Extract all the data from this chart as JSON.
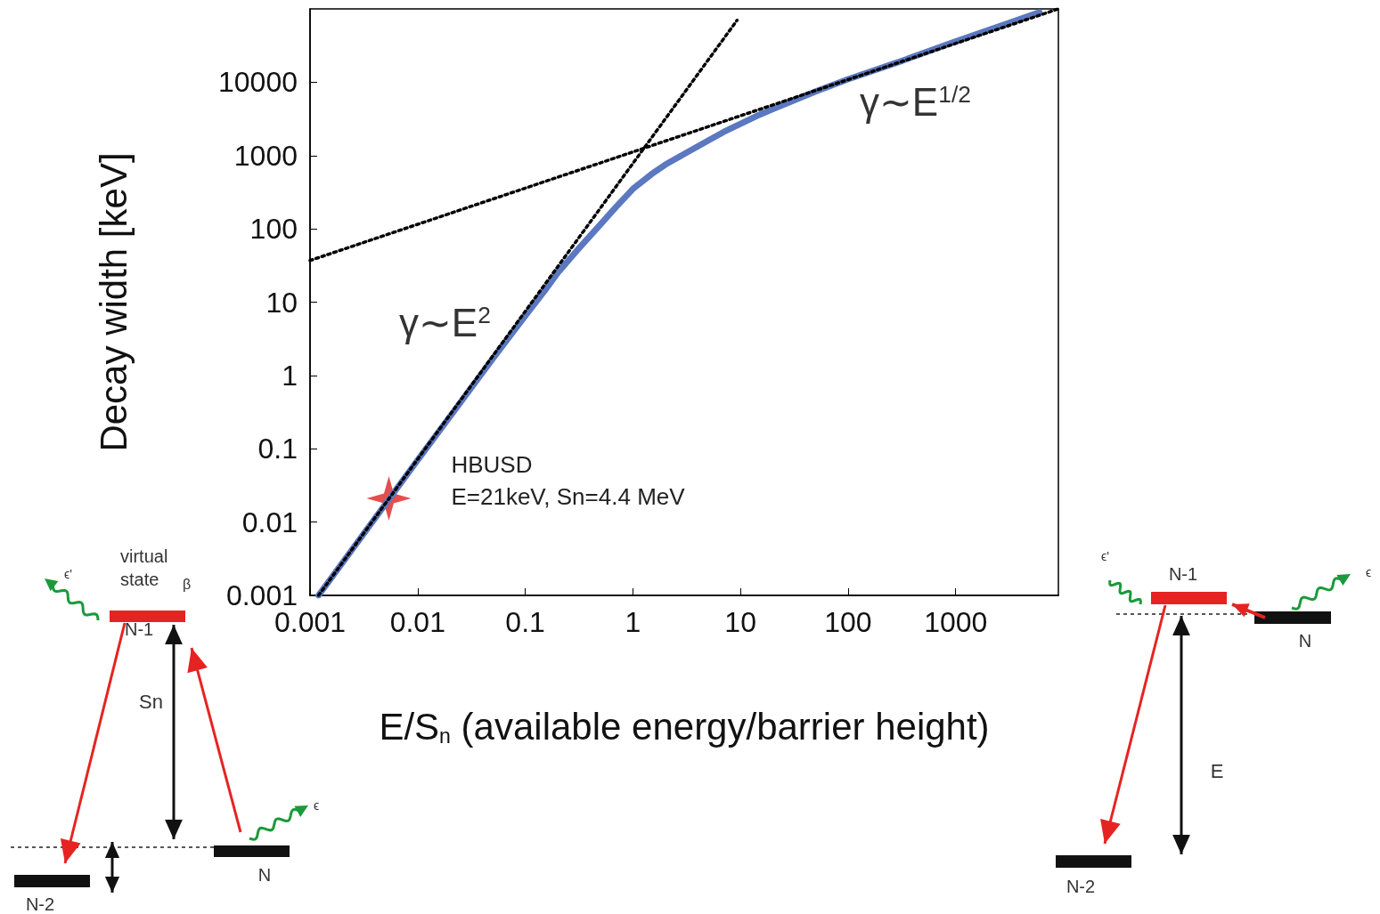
{
  "chart_data": {
    "type": "line",
    "xlabel": "E/S$_{n}$ (available energy/barrier height)",
    "ylabel": "Decay width [keV]",
    "log": "xy",
    "xlim": [
      0.001,
      9000
    ],
    "ylim": [
      0.001,
      100000
    ],
    "xticks": [
      0.001,
      0.01,
      0.1,
      1,
      10,
      100,
      1000
    ],
    "yticks": [
      0.001,
      0.01,
      0.1,
      1,
      10,
      100,
      1000,
      10000
    ],
    "series": [
      {
        "type": "line",
        "color": "#5b78c0",
        "line_style": "solid",
        "marker": "none",
        "x": [
          0.0012,
          0.01,
          0.05,
          0.1,
          0.15,
          0.2,
          0.3,
          0.4,
          0.5,
          0.7,
          1,
          1.5,
          2,
          3,
          5,
          7,
          10,
          15,
          20,
          50,
          100,
          300,
          1000,
          3000,
          6000
        ],
        "values": [
          0.001,
          0.07,
          1.7,
          6.5,
          14,
          25,
          50,
          80,
          115,
          200,
          350,
          560,
          750,
          1050,
          1600,
          2100,
          2700,
          3600,
          4300,
          7500,
          11000,
          19000,
          36000,
          63000,
          90000
        ]
      },
      {
        "type": "line",
        "color": "#000000",
        "line_style": "dotted",
        "marker": "none",
        "x": [
          0.0012,
          9.3
        ],
        "values": [
          0.001,
          70000
        ]
      },
      {
        "type": "line",
        "color": "#000000",
        "line_style": "dotted",
        "marker": "none",
        "x": [
          0.001,
          9000
        ],
        "values": [
          37,
          100000
        ]
      },
      {
        "type": "scatter",
        "color": "#e02020",
        "marker": "star",
        "x": [
          0.0054
        ],
        "values": [
          0.021
        ]
      }
    ],
    "annotations": [
      "γ∼E$^{2}$",
      "γ∼E$^{1/2}$",
      {
        "text": "HBUSD\nE=21keV, Sn=4.4 MeV",
        "x": 0.0054,
        "y": 0.021
      },
      "virtual state",
      "β",
      "ϵ'",
      "N-1",
      "Sn",
      "ϵ",
      "N",
      "N-2",
      "ϵ'",
      "N-1",
      "ϵ",
      "N",
      "E",
      "N-2"
    ]
  }
}
